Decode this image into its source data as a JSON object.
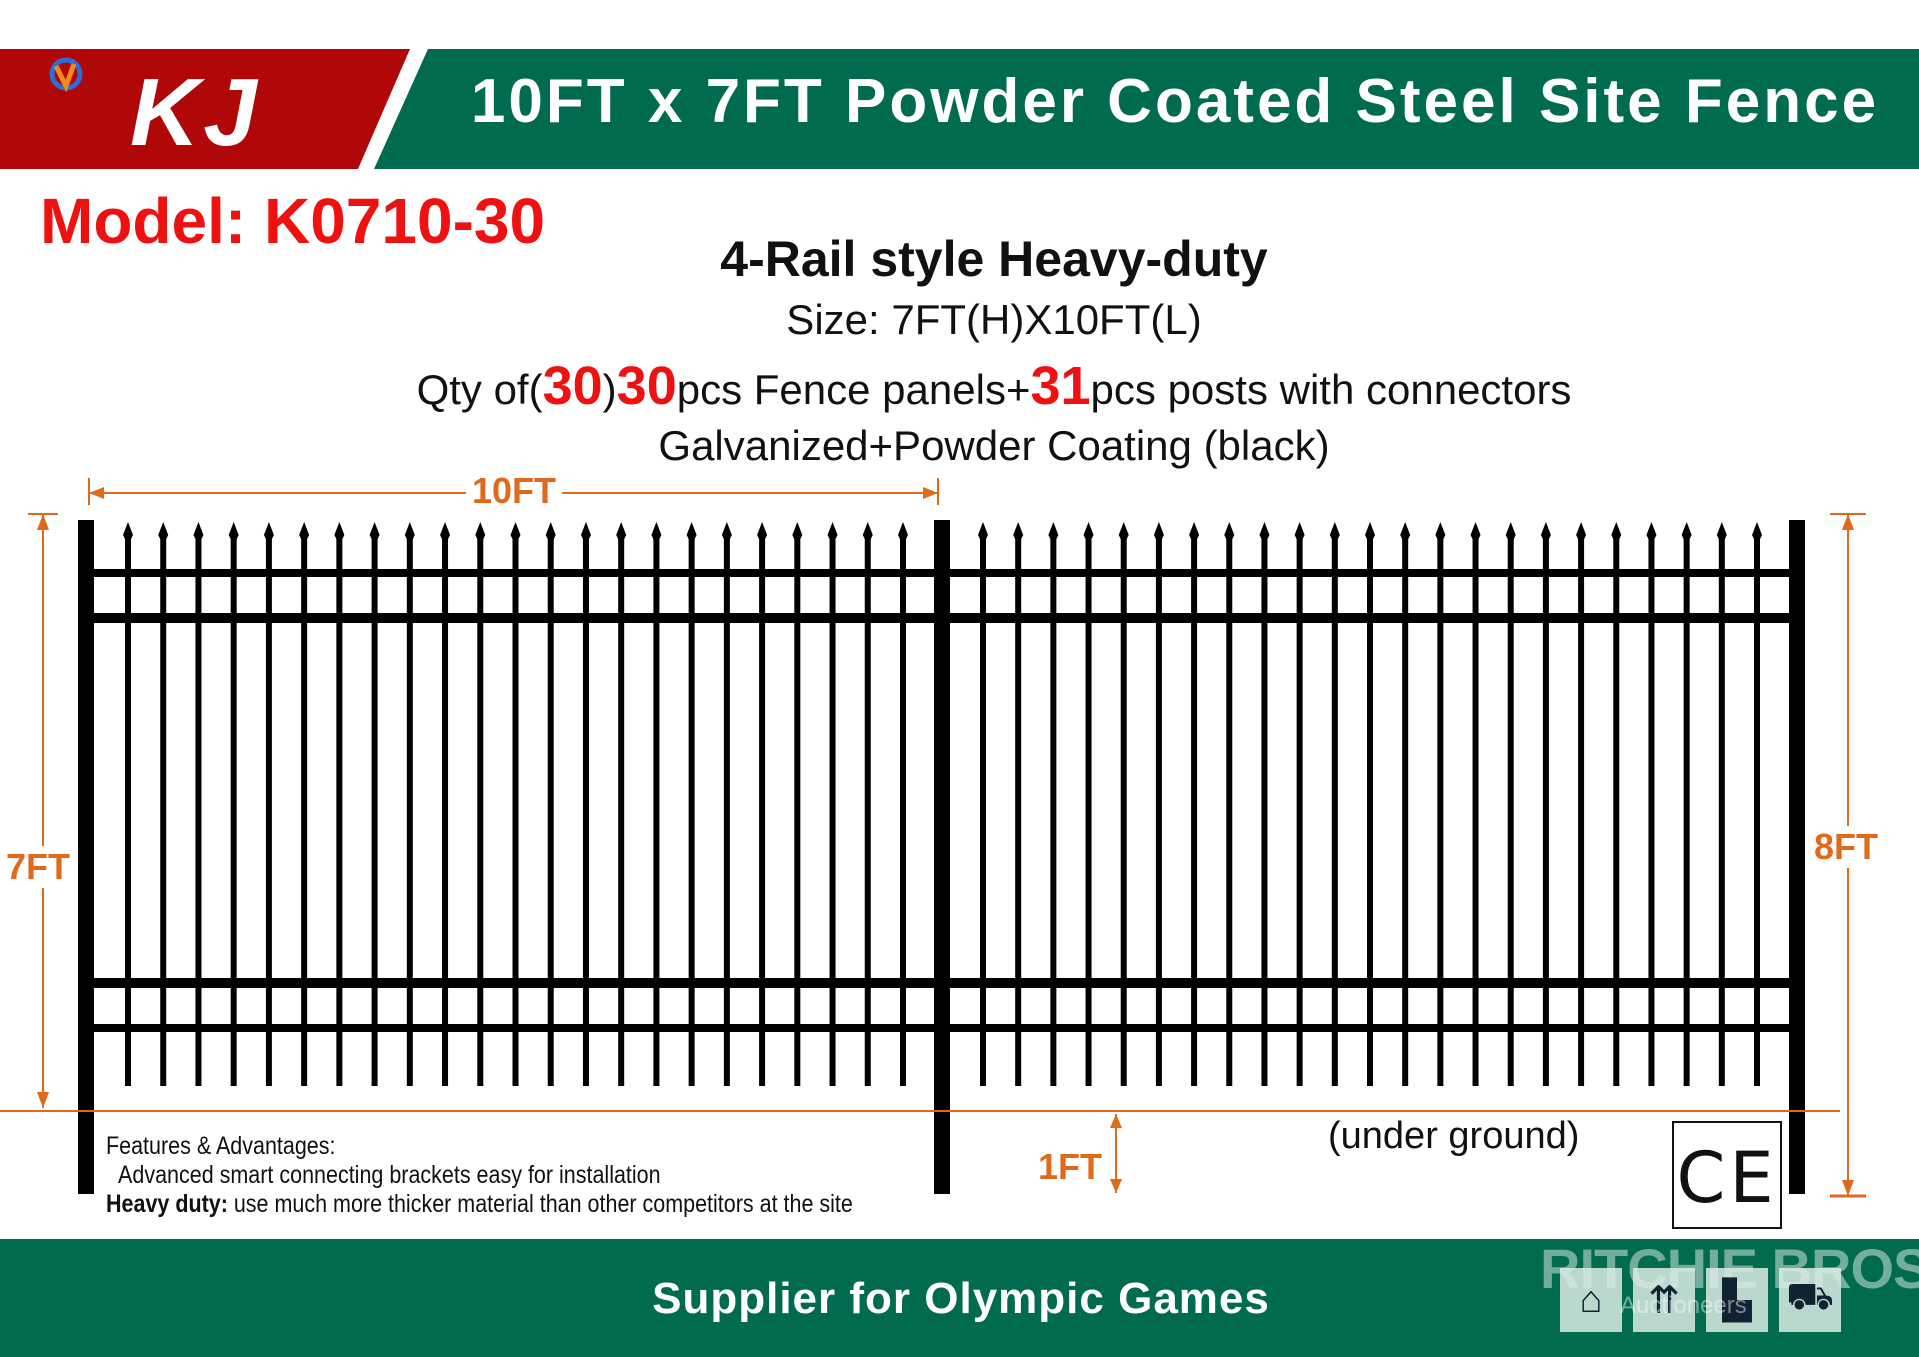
{
  "header": {
    "brand_logo_text": "KJ",
    "title": "10FT x 7FT Powder Coated Steel Site Fence",
    "colors": {
      "brand_red": "#b00808",
      "green": "#006b4f",
      "accent_red": "#ee1111",
      "dimension_orange": "#e06a1c"
    }
  },
  "model": "Model: K0710-30",
  "specs": {
    "style": "4-Rail style Heavy-duty",
    "size": "Size: 7FT(H)X10FT(L)",
    "qty_prefix": "Qty of(",
    "qty_a": "30",
    "qty_mid": ")",
    "qty_b": "30",
    "qty_panels": "pcs Fence panels+",
    "qty_posts": "31",
    "qty_suffix": "pcs posts with connectors",
    "finish": "Galvanized+Powder Coating (black)"
  },
  "dimensions": {
    "length": "10FT",
    "height": "7FT",
    "post_height": "8FT",
    "underground": "1FT",
    "underground_label": "(under ground)"
  },
  "features": {
    "heading": "Features & Advantages:",
    "line1": "Advanced smart connecting brackets easy for installation",
    "line2_bold": "Heavy duty:",
    "line2": " use much more thicker material than other competitors at the site"
  },
  "certification": "CE",
  "footer": {
    "tagline": "Supplier for  Olympic Games",
    "watermark": "RITCHIE BROS.",
    "watermark_sub": "Auctioneers",
    "shipping_icons": [
      "lift-hook-icon",
      "this-way-up-icon",
      "heavy-lift-icon",
      "forklift-icon"
    ]
  }
}
